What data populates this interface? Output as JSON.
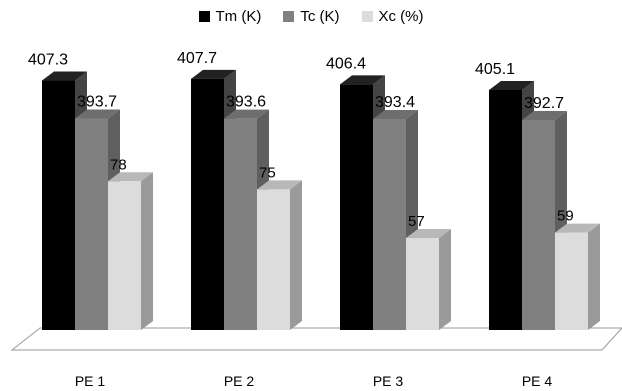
{
  "chart_data": {
    "type": "bar",
    "style": "3d-clustered-column",
    "categories": [
      "PE 1",
      "PE 2",
      "PE 3",
      "PE 4"
    ],
    "series": [
      {
        "name": "Tm (K)",
        "values": [
          407.3,
          407.7,
          406.4,
          405.1
        ],
        "color": "#000000",
        "side": "#444444",
        "top": "#222222"
      },
      {
        "name": "Tc (K)",
        "values": [
          393.7,
          393.6,
          393.4,
          392.7
        ],
        "color": "#808080",
        "side": "#5f5f5f",
        "top": "#6e6e6e"
      },
      {
        "name": "Xc (%)",
        "values": [
          78,
          75,
          57,
          59
        ],
        "color": "#dcdcdc",
        "side": "#9a9a9a",
        "top": "#b8b8b8"
      }
    ],
    "legend": "top-center",
    "grid": false,
    "axes_visible": false,
    "title": "",
    "xlabel": "",
    "ylabel": ""
  }
}
